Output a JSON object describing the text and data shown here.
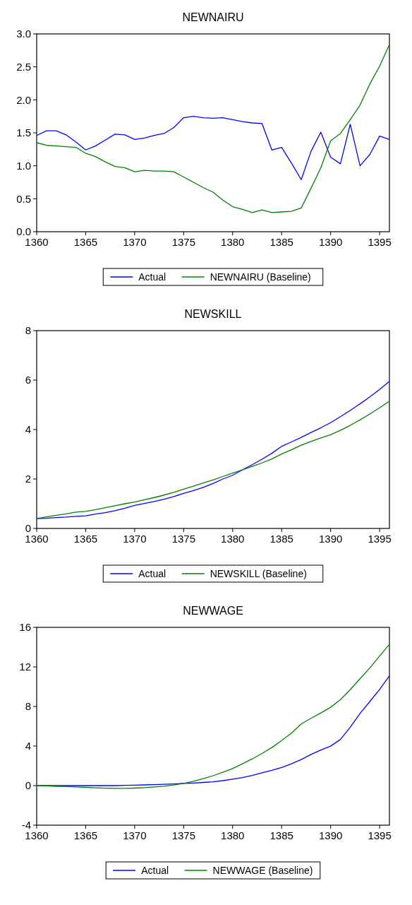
{
  "chart_data": [
    {
      "type": "line",
      "title": "NEWNAIRU",
      "x": [
        1360,
        1361,
        1362,
        1363,
        1364,
        1365,
        1366,
        1367,
        1368,
        1369,
        1370,
        1371,
        1372,
        1373,
        1374,
        1375,
        1376,
        1377,
        1378,
        1379,
        1380,
        1381,
        1382,
        1383,
        1384,
        1385,
        1386,
        1387,
        1388,
        1389,
        1390,
        1391,
        1392,
        1393,
        1394,
        1395,
        1396
      ],
      "xlim": [
        1360,
        1396
      ],
      "xticks": [
        1360,
        1365,
        1370,
        1375,
        1380,
        1385,
        1390,
        1395
      ],
      "ylim": [
        0,
        3
      ],
      "yticks": [
        {
          "value": 0,
          "label": "0.0"
        },
        0.5,
        {
          "value": 1,
          "label": "1.0"
        },
        1.5,
        {
          "value": 2,
          "label": "2.0"
        },
        2.5,
        {
          "value": 3,
          "label": "3.0"
        }
      ],
      "legend": "bottom",
      "series": [
        {
          "name": "Actual",
          "color": "#0000ff",
          "values": [
            1.46,
            1.53,
            1.53,
            1.47,
            1.36,
            1.24,
            1.3,
            1.39,
            1.48,
            1.47,
            1.4,
            1.42,
            1.46,
            1.49,
            1.58,
            1.73,
            1.75,
            1.73,
            1.72,
            1.73,
            1.7,
            1.67,
            1.65,
            1.64,
            1.24,
            1.28,
            1.04,
            0.79,
            1.22,
            1.51,
            1.13,
            1.03,
            1.63,
            1.0,
            1.17,
            1.45,
            1.4
          ]
        },
        {
          "name": "NEWNAIRU (Baseline)",
          "color": "#008000",
          "values": [
            1.35,
            1.31,
            1.3,
            1.29,
            1.28,
            1.19,
            1.14,
            1.06,
            0.99,
            0.97,
            0.91,
            0.93,
            0.92,
            0.92,
            0.91,
            0.83,
            0.75,
            0.67,
            0.6,
            0.48,
            0.38,
            0.34,
            0.29,
            0.33,
            0.29,
            0.3,
            0.31,
            0.36,
            0.66,
            0.97,
            1.38,
            1.49,
            1.7,
            1.92,
            2.24,
            2.51,
            2.84
          ]
        }
      ]
    },
    {
      "type": "line",
      "title": "NEWSKILL",
      "x": [
        1360,
        1361,
        1362,
        1363,
        1364,
        1365,
        1366,
        1367,
        1368,
        1369,
        1370,
        1371,
        1372,
        1373,
        1374,
        1375,
        1376,
        1377,
        1378,
        1379,
        1380,
        1381,
        1382,
        1383,
        1384,
        1385,
        1386,
        1387,
        1388,
        1389,
        1390,
        1391,
        1392,
        1393,
        1394,
        1395,
        1396
      ],
      "xlim": [
        1360,
        1396
      ],
      "xticks": [
        1360,
        1365,
        1370,
        1375,
        1380,
        1385,
        1390,
        1395
      ],
      "ylim": [
        0,
        8
      ],
      "yticks": [
        0,
        2,
        4,
        6,
        8
      ],
      "legend": "bottom",
      "series": [
        {
          "name": "Actual",
          "color": "#0000ff",
          "values": [
            0.4,
            0.41,
            0.44,
            0.46,
            0.49,
            0.51,
            0.58,
            0.64,
            0.72,
            0.82,
            0.93,
            1.01,
            1.09,
            1.18,
            1.29,
            1.42,
            1.53,
            1.66,
            1.82,
            2.0,
            2.15,
            2.37,
            2.58,
            2.8,
            3.04,
            3.32,
            3.5,
            3.68,
            3.88,
            4.07,
            4.28,
            4.52,
            4.77,
            5.04,
            5.32,
            5.62,
            5.95
          ]
        },
        {
          "name": "NEWSKILL (Baseline)",
          "color": "#008000",
          "values": [
            0.4,
            0.47,
            0.53,
            0.59,
            0.66,
            0.69,
            0.76,
            0.84,
            0.92,
            1.0,
            1.07,
            1.16,
            1.25,
            1.35,
            1.46,
            1.59,
            1.71,
            1.84,
            1.96,
            2.1,
            2.24,
            2.37,
            2.51,
            2.65,
            2.81,
            3.01,
            3.18,
            3.37,
            3.52,
            3.66,
            3.79,
            3.97,
            4.17,
            4.39,
            4.63,
            4.88,
            5.15
          ]
        }
      ]
    },
    {
      "type": "line",
      "title": "NEWWAGE",
      "x": [
        1360,
        1361,
        1362,
        1363,
        1364,
        1365,
        1366,
        1367,
        1368,
        1369,
        1370,
        1371,
        1372,
        1373,
        1374,
        1375,
        1376,
        1377,
        1378,
        1379,
        1380,
        1381,
        1382,
        1383,
        1384,
        1385,
        1386,
        1387,
        1388,
        1389,
        1390,
        1391,
        1392,
        1393,
        1394,
        1395,
        1396
      ],
      "xlim": [
        1360,
        1396
      ],
      "xticks": [
        1360,
        1365,
        1370,
        1375,
        1380,
        1385,
        1390,
        1395
      ],
      "ylim": [
        -4,
        16
      ],
      "yticks": [
        -4,
        0,
        4,
        8,
        12,
        16
      ],
      "legend": "bottom",
      "series": [
        {
          "name": "Actual",
          "color": "#0000ff",
          "values": [
            0,
            0,
            0,
            0,
            0,
            0,
            0,
            0,
            0,
            0.02,
            0.04,
            0.07,
            0.1,
            0.13,
            0.17,
            0.22,
            0.26,
            0.32,
            0.38,
            0.5,
            0.65,
            0.82,
            1.03,
            1.3,
            1.55,
            1.83,
            2.2,
            2.63,
            3.15,
            3.6,
            3.99,
            4.67,
            5.9,
            7.3,
            8.5,
            9.72,
            11.1
          ]
        },
        {
          "name": "NEWWAGE (Baseline)",
          "color": "#008000",
          "values": [
            0,
            -0.03,
            -0.07,
            -0.1,
            -0.13,
            -0.18,
            -0.23,
            -0.26,
            -0.28,
            -0.28,
            -0.25,
            -0.2,
            -0.14,
            -0.06,
            0.06,
            0.22,
            0.43,
            0.7,
            1.0,
            1.35,
            1.72,
            2.2,
            2.7,
            3.25,
            3.85,
            4.55,
            5.3,
            6.23,
            6.8,
            7.35,
            7.92,
            8.7,
            9.7,
            10.8,
            11.9,
            13.1,
            14.3
          ]
        }
      ]
    }
  ]
}
